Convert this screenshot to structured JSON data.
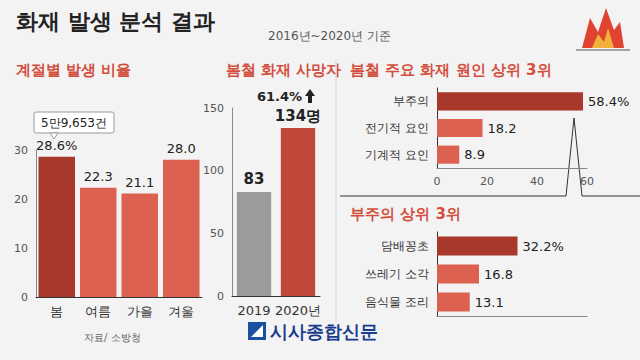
{
  "title": "화재 발생 분석 결과",
  "subtitle": "2016년~2020년 기준",
  "source": "자료/ 소방청",
  "brand": "시사종합신문",
  "chart_data": [
    {
      "type": "bar",
      "title": "계절별 발생 비율",
      "categories": [
        "봄",
        "여름",
        "가을",
        "겨울"
      ],
      "values": [
        28.6,
        22.3,
        21.1,
        28.0
      ],
      "value_labels": [
        "28.6%",
        "22.3",
        "21.1",
        "28.0"
      ],
      "colors": [
        "#a8382b",
        "#dc6150",
        "#dc6150",
        "#dc6150"
      ],
      "ylim": [
        0,
        30
      ],
      "yticks": [
        0,
        10,
        20,
        30
      ],
      "grid": false,
      "data_labels": true,
      "annotation": "5만9,653건"
    },
    {
      "type": "bar",
      "title": "봄철 화재 사망자",
      "categories": [
        "2019",
        "2020년"
      ],
      "values": [
        83,
        134
      ],
      "value_labels": [
        "83",
        "134명"
      ],
      "colors": [
        "#9b9b9b",
        "#c0473a"
      ],
      "ylim": [
        0,
        150
      ],
      "yticks": [
        0,
        50,
        100,
        150
      ],
      "grid": false,
      "data_labels": true,
      "annotation": "61.4%"
    },
    {
      "type": "bar",
      "title": "봄철 주요 화재 원인 상위 3위",
      "orientation": "horizontal",
      "categories": [
        "부주의",
        "전기적 요인",
        "기계적 요인"
      ],
      "values": [
        58.4,
        18.2,
        8.9
      ],
      "value_labels": [
        "58.4%",
        "18.2",
        "8.9"
      ],
      "colors": [
        "#a8382b",
        "#dc6150",
        "#dc6150"
      ],
      "xlim": [
        0,
        60
      ],
      "xticks": [
        0,
        20,
        40,
        60
      ],
      "grid": false,
      "data_labels": true
    },
    {
      "type": "bar",
      "title": "부주의 상위 3위",
      "orientation": "horizontal",
      "categories": [
        "담배꽁초",
        "쓰레기 소각",
        "음식물 조리"
      ],
      "values": [
        32.2,
        16.8,
        13.1
      ],
      "value_labels": [
        "32.2%",
        "16.8",
        "13.1"
      ],
      "colors": [
        "#a8382b",
        "#dc6150",
        "#dc6150"
      ],
      "xlim": [
        0,
        60
      ],
      "grid": false,
      "data_labels": true,
      "tick_labels": "y"
    }
  ]
}
